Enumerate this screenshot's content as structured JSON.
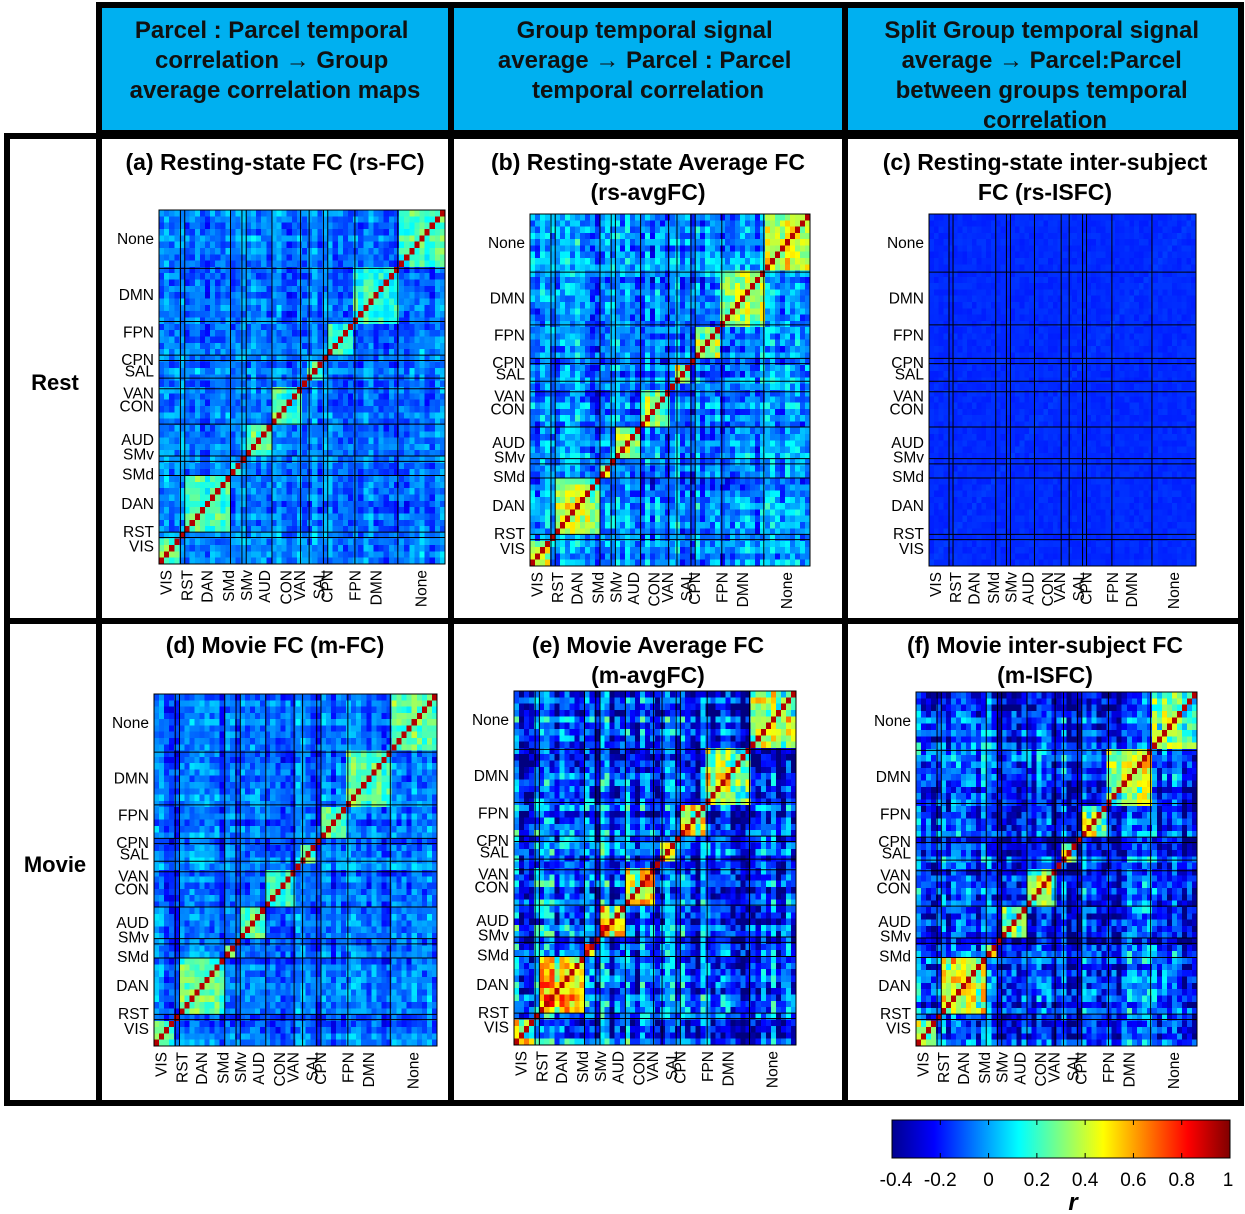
{
  "column_headers": [
    "Parcel : Parcel temporal correlation → Group average correlation maps",
    "Group temporal signal average → Parcel : Parcel temporal correlation",
    "Split Group temporal signal average → Parcel:Parcel between groups temporal correlation"
  ],
  "column_header_lines": [
    [
      "Parcel : Parcel temporal",
      "correlation → Group",
      "average correlation maps"
    ],
    [
      "Group temporal signal",
      "average → Parcel : Parcel",
      "temporal correlation"
    ],
    [
      "Split Group temporal signal",
      "average → Parcel:Parcel",
      "between groups temporal",
      "correlation"
    ]
  ],
  "row_labels": [
    "Rest",
    "Movie"
  ],
  "colors": {
    "header_fill": "#00b0f0",
    "border": "#000000",
    "colormap": [
      "#00008f",
      "#0000ff",
      "#00ffff",
      "#ffff00",
      "#ff0000",
      "#800000"
    ]
  },
  "chart_data": [
    {
      "type": "heatmap",
      "panel": "a",
      "title": "(a) Resting-state FC (rs-FC)",
      "title_lines": [
        "(a)  Resting-state FC (rs-FC)"
      ],
      "condition": "Rest",
      "method": "FC",
      "clim": [
        -0.4,
        1
      ]
    },
    {
      "type": "heatmap",
      "panel": "b",
      "title": "(b) Resting-state Average FC (rs-avgFC)",
      "title_lines": [
        "(b) Resting-state Average FC",
        "(rs-avgFC)"
      ],
      "condition": "Rest",
      "method": "avgFC",
      "clim": [
        -0.4,
        1
      ]
    },
    {
      "type": "heatmap",
      "panel": "c",
      "title": "(c) Resting-state inter-subject FC (rs-ISFC)",
      "title_lines": [
        "(c) Resting-state inter-subject",
        "FC (rs-ISFC)"
      ],
      "condition": "Rest",
      "method": "ISFC",
      "clim": [
        -0.4,
        1
      ]
    },
    {
      "type": "heatmap",
      "panel": "d",
      "title": "(d) Movie FC (m-FC)",
      "title_lines": [
        "(d) Movie FC (m-FC)"
      ],
      "condition": "Movie",
      "method": "FC",
      "clim": [
        -0.4,
        1
      ]
    },
    {
      "type": "heatmap",
      "panel": "e",
      "title": "(e) Movie Average FC (m-avgFC)",
      "title_lines": [
        "(e) Movie Average FC",
        "(m-avgFC)"
      ],
      "condition": "Movie",
      "method": "avgFC",
      "clim": [
        -0.4,
        1
      ]
    },
    {
      "type": "heatmap",
      "panel": "f",
      "title": "(f) Movie inter-subject FC (m-ISFC)",
      "title_lines": [
        "(f) Movie inter-subject FC",
        "(m-ISFC)"
      ],
      "condition": "Movie",
      "method": "ISFC",
      "clim": [
        -0.4,
        1
      ]
    }
  ],
  "networks_y": [
    "None",
    "DMN",
    "FPN",
    "CPN",
    "SAL",
    "VAN",
    "CON",
    "AUD",
    "SMv",
    "SMd",
    "DAN",
    "RST",
    "VIS"
  ],
  "networks_x": [
    "VIS",
    "RST",
    "DAN",
    "SMd",
    "SMv",
    "AUD",
    "CON",
    "VAN",
    "SAL",
    "CPN",
    "FPN",
    "DMN",
    "None"
  ],
  "colorbar": {
    "label": "r",
    "range": [
      -0.4,
      1
    ],
    "ticks": [
      "-0.4",
      "-0.2",
      "0",
      "0.2",
      "0.4",
      "0.6",
      "0.8",
      "1"
    ]
  }
}
